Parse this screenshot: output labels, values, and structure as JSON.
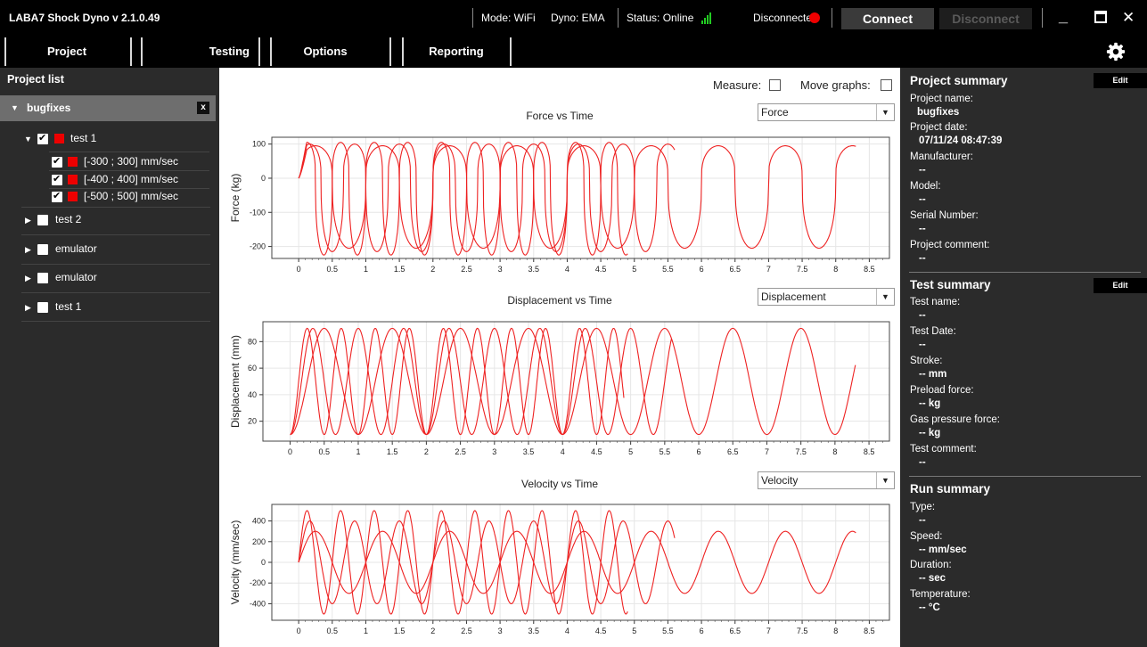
{
  "app": {
    "title": "LABA7 Shock Dyno  v 2.1.0.49",
    "mode": "Mode: WiFi",
    "dyno": "Dyno: EMA",
    "status": "Status: Online",
    "connection_state": "Disconnected",
    "connect_label": "Connect",
    "disconnect_label": "Disconnect",
    "minimize_glyph": "_",
    "close_glyph": "✕"
  },
  "nav": {
    "tabs": [
      "Project",
      "Testing",
      "Options",
      "Reporting"
    ]
  },
  "left": {
    "heading": "Project list",
    "project": "bugfixes",
    "project_close": "x",
    "tests": [
      {
        "label": "test 1",
        "checked": true,
        "expanded": true,
        "runs": [
          "[-300 ; 300] mm/sec",
          "[-400 ; 400] mm/sec",
          "[-500 ; 500] mm/sec"
        ]
      },
      {
        "label": "test 2",
        "checked": false,
        "expanded": false
      },
      {
        "label": "emulator",
        "checked": false,
        "expanded": false
      },
      {
        "label": "emulator",
        "checked": false,
        "expanded": false
      },
      {
        "label": "test 1",
        "checked": false,
        "expanded": false
      }
    ]
  },
  "toolbar": {
    "measure_label": "Measure:",
    "move_graphs_label": "Move graphs:"
  },
  "charts": [
    {
      "title": "Force vs Time",
      "selector": "Force",
      "ylabel": "Force (kg)",
      "yticks": [
        100,
        0,
        -100,
        -200
      ],
      "ylim": [
        -235,
        120
      ]
    },
    {
      "title": "Displacement vs Time",
      "selector": "Displacement",
      "ylabel": "Displacement (mm)",
      "yticks": [
        80,
        60,
        40,
        20
      ],
      "ylim": [
        5,
        95
      ]
    },
    {
      "title": "Velocity vs Time",
      "selector": "Velocity",
      "ylabel": "Velocity (mm/sec)",
      "yticks": [
        400,
        200,
        0,
        -200,
        -400
      ],
      "ylim": [
        -560,
        560
      ]
    }
  ],
  "chart_data": [
    {
      "type": "line",
      "title": "Force vs Time",
      "ylabel": "Force (kg)",
      "xlim": [
        -0.4,
        8.8
      ],
      "ylim": [
        -235,
        120
      ],
      "xticks": [
        "0",
        "0.5",
        "1",
        "1.5",
        "2",
        "2.5",
        "3",
        "3.5",
        "4",
        "4.5",
        "5",
        "5.5",
        "6",
        "6.5",
        "7",
        "7.5",
        "8",
        "8.5"
      ],
      "series": [
        {
          "freq": 2.0,
          "duration": 4.9,
          "min": -225,
          "max": 105
        },
        {
          "freq": 1.5,
          "duration": 5.6,
          "min": -215,
          "max": 100
        },
        {
          "freq": 1.0,
          "duration": 8.3,
          "min": -205,
          "max": 95
        }
      ]
    },
    {
      "type": "line",
      "title": "Displacement vs Time",
      "ylabel": "Displacement (mm)",
      "xlim": [
        -0.4,
        8.8
      ],
      "ylim": [
        5,
        95
      ],
      "xticks": [
        "0",
        "0.5",
        "1",
        "1.5",
        "2",
        "2.5",
        "3",
        "3.5",
        "4",
        "4.5",
        "5",
        "5.5",
        "6",
        "6.5",
        "7",
        "7.5",
        "8",
        "8.5"
      ],
      "series": [
        {
          "freq": 2.0,
          "duration": 4.9,
          "min": 10,
          "max": 90
        },
        {
          "freq": 1.5,
          "duration": 5.6,
          "min": 10,
          "max": 90
        },
        {
          "freq": 1.0,
          "duration": 8.3,
          "min": 10,
          "max": 90
        }
      ]
    },
    {
      "type": "line",
      "title": "Velocity vs Time",
      "ylabel": "Velocity (mm/sec)",
      "xlim": [
        -0.4,
        8.8
      ],
      "ylim": [
        -560,
        560
      ],
      "xticks": [
        "0",
        "0.5",
        "1",
        "1.5",
        "2",
        "2.5",
        "3",
        "3.5",
        "4",
        "4.5",
        "5",
        "5.5",
        "6",
        "6.5",
        "7",
        "7.5",
        "8",
        "8.5"
      ],
      "series": [
        {
          "freq": 2.0,
          "duration": 4.9,
          "amp": 500
        },
        {
          "freq": 1.5,
          "duration": 5.6,
          "amp": 400
        },
        {
          "freq": 1.0,
          "duration": 8.3,
          "amp": 300
        }
      ]
    }
  ],
  "project_summary": {
    "heading": "Project summary",
    "edit": "Edit",
    "fields": [
      {
        "label": "Project name:",
        "value": "bugfixes"
      },
      {
        "label": "Project date:",
        "value": "07/11/24 08:47:39"
      },
      {
        "label": "Manufacturer:",
        "value": "--"
      },
      {
        "label": "Model:",
        "value": "--"
      },
      {
        "label": "Serial Number:",
        "value": "--"
      },
      {
        "label": "Project comment:",
        "value": "--"
      }
    ]
  },
  "test_summary": {
    "heading": "Test summary",
    "edit": "Edit",
    "fields": [
      {
        "label": "Test name:",
        "value": "--"
      },
      {
        "label": "Test Date:",
        "value": "--"
      },
      {
        "label": "Stroke:",
        "value": "-- mm"
      },
      {
        "label": "Preload force:",
        "value": "-- kg"
      },
      {
        "label": "Gas pressure force:",
        "value": "-- kg"
      },
      {
        "label": "Test comment:",
        "value": "--"
      }
    ]
  },
  "run_summary": {
    "heading": "Run summary",
    "fields": [
      {
        "label": "Type:",
        "value": "--"
      },
      {
        "label": "Speed:",
        "value": "-- mm/sec"
      },
      {
        "label": "Duration:",
        "value": "-- sec"
      },
      {
        "label": "Temperature:",
        "value": "-- °C"
      }
    ]
  },
  "colors": {
    "series": "#ee2222",
    "indicator": "#ee0000",
    "signal": "#22cc22"
  }
}
